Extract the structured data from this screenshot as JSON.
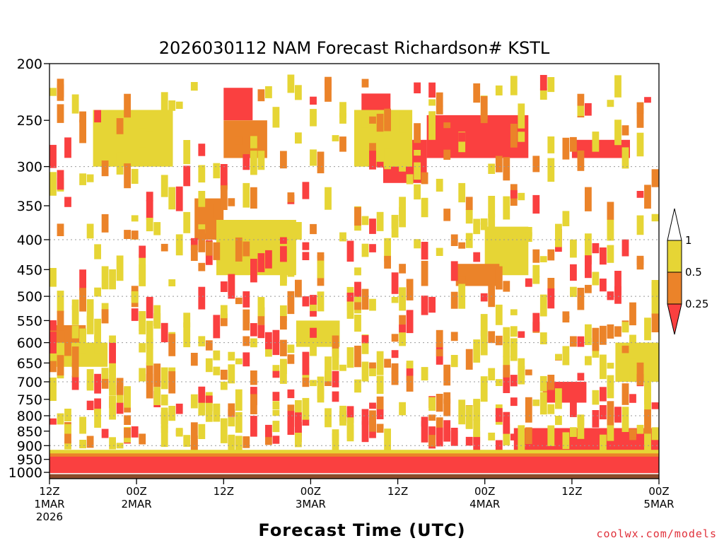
{
  "chart_data": {
    "type": "heatmap",
    "title": "2026030112 NAM Forecast Richardson# KSTL",
    "xlabel": "Forecast Time (UTC)",
    "ylabel": "",
    "y_axis": {
      "scale": "log-pressure",
      "units": "hPa",
      "range": [
        1025,
        200
      ],
      "ticks": [
        200,
        250,
        300,
        350,
        400,
        450,
        500,
        550,
        600,
        650,
        700,
        750,
        800,
        850,
        900,
        950,
        1000
      ],
      "dotted_gridlines": [
        300,
        400,
        500,
        600,
        700,
        800,
        900
      ]
    },
    "x_axis": {
      "units": "forecast hour",
      "range": [
        0,
        84
      ],
      "ticks": [
        {
          "hour": 0,
          "line1": "12Z",
          "line2": "1MAR",
          "line3": "2026"
        },
        {
          "hour": 12,
          "line1": "00Z",
          "line2": "2MAR",
          "line3": ""
        },
        {
          "hour": 24,
          "line1": "12Z",
          "line2": "",
          "line3": ""
        },
        {
          "hour": 36,
          "line1": "00Z",
          "line2": "3MAR",
          "line3": ""
        },
        {
          "hour": 48,
          "line1": "12Z",
          "line2": "",
          "line3": ""
        },
        {
          "hour": 60,
          "line1": "00Z",
          "line2": "4MAR",
          "line3": ""
        },
        {
          "hour": 72,
          "line1": "12Z",
          "line2": "",
          "line3": ""
        },
        {
          "hour": 84,
          "line1": "00Z",
          "line2": "5MAR",
          "line3": ""
        }
      ]
    },
    "legend": {
      "placement": "right",
      "bins": [
        {
          "range": "> 1",
          "color": "#ffffff"
        },
        {
          "range": "0.5 - 1",
          "color": "#e6d535"
        },
        {
          "range": "0.25 - 0.5",
          "color": "#eb8329"
        },
        {
          "range": "< 0.25",
          "color": "#fa4040"
        }
      ],
      "labels": [
        "1",
        "0.5",
        "0.25"
      ]
    },
    "ground_color": "#8b4b2b",
    "regions": [
      {
        "bin": "<0.25",
        "hours": [
          0,
          84
        ],
        "p": [
          940,
          1000
        ],
        "note": "continuous low-Ri layer near surface"
      },
      {
        "bin": "0.25-0.5",
        "hours": [
          0,
          84
        ],
        "p": [
          930,
          945
        ]
      },
      {
        "bin": "0.5-1",
        "hours": [
          0,
          84
        ],
        "p": [
          920,
          932
        ]
      },
      {
        "bin": "<0.25",
        "hours": [
          52,
          66
        ],
        "p": [
          245,
          290
        ]
      },
      {
        "bin": "<0.25",
        "hours": [
          72,
          80
        ],
        "p": [
          270,
          290
        ]
      },
      {
        "bin": "<0.25",
        "hours": [
          24,
          28
        ],
        "p": [
          220,
          250
        ]
      },
      {
        "bin": "<0.25",
        "hours": [
          43,
          47
        ],
        "p": [
          225,
          245
        ]
      },
      {
        "bin": "<0.25",
        "hours": [
          10,
          14
        ],
        "p": [
          270,
          295
        ]
      },
      {
        "bin": "0.25-0.5",
        "hours": [
          24,
          30
        ],
        "p": [
          250,
          290
        ]
      },
      {
        "bin": "<0.25",
        "hours": [
          46,
          52
        ],
        "p": [
          270,
          320
        ]
      },
      {
        "bin": "0.5-1",
        "hours": [
          42,
          50
        ],
        "p": [
          240,
          300
        ]
      },
      {
        "bin": "0.5-1",
        "hours": [
          6,
          17
        ],
        "p": [
          240,
          300
        ]
      },
      {
        "bin": "0.25-0.5",
        "hours": [
          20,
          24
        ],
        "p": [
          340,
          400
        ]
      },
      {
        "bin": "0.5-1",
        "hours": [
          23,
          34
        ],
        "p": [
          370,
          460
        ]
      },
      {
        "bin": "0.5-1",
        "hours": [
          60,
          66
        ],
        "p": [
          380,
          460
        ]
      },
      {
        "bin": "0.25-0.5",
        "hours": [
          56,
          62
        ],
        "p": [
          440,
          480
        ]
      },
      {
        "bin": "0.25-0.5",
        "hours": [
          0,
          5
        ],
        "p": [
          560,
          620
        ]
      },
      {
        "bin": "0.5-1",
        "hours": [
          0,
          8
        ],
        "p": [
          600,
          660
        ]
      },
      {
        "bin": "<0.25",
        "hours": [
          68,
          74
        ],
        "p": [
          700,
          760
        ]
      },
      {
        "bin": "<0.25",
        "hours": [
          64,
          84
        ],
        "p": [
          840,
          920
        ]
      },
      {
        "bin": "0.5-1",
        "hours": [
          34,
          40
        ],
        "p": [
          550,
          610
        ]
      },
      {
        "bin": "0.5-1",
        "hours": [
          78,
          84
        ],
        "p": [
          600,
          700
        ]
      }
    ]
  },
  "credit": "coolwx.com/models"
}
